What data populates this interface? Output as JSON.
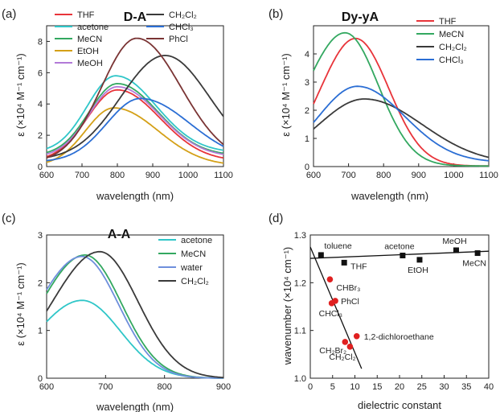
{
  "panels": {
    "a": {
      "label": "(a)",
      "title": "D-A"
    },
    "b": {
      "label": "(b)",
      "title": "Dy-yA"
    },
    "c": {
      "label": "(c)",
      "title": "A-A"
    },
    "d": {
      "label": "(d)"
    }
  },
  "colors": {
    "THF": "#e8343a",
    "acetone": "#2fc6c8",
    "MeCN": "#33a860",
    "EtOH": "#d4a017",
    "MeOH": "#b27ad8",
    "CH2Cl2": "#3a3a3a",
    "CHCl3": "#2b6ed4",
    "PhCl": "#7a3434",
    "water": "#6f8fdc",
    "marker_d": "#e02020",
    "marker_k": "#111111"
  },
  "chart_data": [
    {
      "id": "a",
      "type": "line",
      "title": "D-A",
      "xlabel": "wavelength (nm)",
      "ylabel": "ε (×10⁴ M⁻¹ cm⁻¹)",
      "xlim": [
        600,
        1100
      ],
      "ylim": [
        0,
        9
      ],
      "xticks": [
        600,
        700,
        800,
        900,
        1000,
        1100
      ],
      "yticks": [
        0,
        2,
        4,
        6,
        8
      ],
      "legend": [
        [
          "THF",
          "acetone",
          "MeCN",
          "EtOH",
          "MeOH"
        ],
        [
          "CH₂Cl₂",
          "CHCl₃",
          "PhCl"
        ]
      ],
      "series": [
        {
          "name": "THF",
          "peak_x": 800,
          "peak_y": 4.9,
          "w1": 85,
          "w2": 120,
          "base": 0.35
        },
        {
          "name": "acetone",
          "peak_x": 795,
          "peak_y": 5.8,
          "w1": 80,
          "w2": 115,
          "base": 0.9
        },
        {
          "name": "MeCN",
          "peak_x": 800,
          "peak_y": 5.3,
          "w1": 80,
          "w2": 115,
          "base": 0.7
        },
        {
          "name": "EtOH",
          "peak_x": 790,
          "peak_y": 3.75,
          "w1": 80,
          "w2": 125,
          "base": 0.05
        },
        {
          "name": "MeOH",
          "peak_x": 800,
          "peak_y": 5.1,
          "w1": 80,
          "w2": 118,
          "base": 0.6
        },
        {
          "name": "CH₂Cl₂",
          "color_key": "CH2Cl2",
          "peak_x": 935,
          "peak_y": 7.1,
          "w1": 125,
          "w2": 125,
          "base": 0.4
        },
        {
          "name": "CHCl₃",
          "color_key": "CHCl3",
          "peak_x": 865,
          "peak_y": 4.35,
          "w1": 95,
          "w2": 140,
          "base": 0.3
        },
        {
          "name": "PhCl",
          "peak_x": 855,
          "peak_y": 8.2,
          "w1": 100,
          "w2": 125,
          "base": 0.25
        }
      ]
    },
    {
      "id": "b",
      "type": "line",
      "title": "Dy-yA",
      "xlabel": "wavelength (nm)",
      "ylabel": "ε (×10⁴ M⁻¹ cm⁻¹)",
      "xlim": [
        600,
        1100
      ],
      "ylim": [
        0,
        5
      ],
      "xticks": [
        600,
        700,
        800,
        900,
        1000,
        1100
      ],
      "yticks": [
        0,
        1,
        2,
        3,
        4
      ],
      "legend": [
        "THF",
        "MeCN",
        "CH₂Cl₂",
        "CHCl₃"
      ],
      "series": [
        {
          "name": "THF",
          "peak_x": 720,
          "peak_y": 4.55,
          "w1": 100,
          "w2": 95,
          "base": 0.02
        },
        {
          "name": "MeCN",
          "peak_x": 690,
          "peak_y": 4.75,
          "w1": 110,
          "w2": 95,
          "base": 0.02
        },
        {
          "name": "CH₂Cl₂",
          "color_key": "CH2Cl2",
          "peak_x": 745,
          "peak_y": 2.4,
          "w1": 130,
          "w2": 165,
          "base": 0.1
        },
        {
          "name": "CHCl₃",
          "color_key": "CHCl3",
          "peak_x": 725,
          "peak_y": 2.85,
          "w1": 110,
          "w2": 135,
          "base": 0.15
        }
      ]
    },
    {
      "id": "c",
      "type": "line",
      "title": "A-A",
      "xlabel": "wavelength (nm)",
      "ylabel": "ε (×10⁴ M⁻¹ cm⁻¹)",
      "xlim": [
        600,
        900
      ],
      "ylim": [
        0,
        3
      ],
      "xticks": [
        600,
        700,
        800,
        900
      ],
      "yticks": [
        0,
        1,
        2,
        3
      ],
      "legend": [
        "acetone",
        "MeCN",
        "water",
        "CH₂Cl₂"
      ],
      "series": [
        {
          "name": "acetone",
          "peak_x": 660,
          "peak_y": 1.63,
          "w1": 75,
          "w2": 65,
          "base": 0.0
        },
        {
          "name": "MeCN",
          "peak_x": 665,
          "peak_y": 2.58,
          "w1": 75,
          "w2": 62,
          "base": 0.0
        },
        {
          "name": "water",
          "peak_x": 660,
          "peak_y": 2.55,
          "w1": 75,
          "w2": 62,
          "base": 0.0
        },
        {
          "name": "CH₂Cl₂",
          "color_key": "CH2Cl2",
          "peak_x": 690,
          "peak_y": 2.65,
          "w1": 80,
          "w2": 65,
          "base": 0.0
        }
      ]
    },
    {
      "id": "d",
      "type": "scatter",
      "xlabel": "dielectric constant",
      "ylabel": "wavenumber (×10⁴ cm⁻¹)",
      "xlim": [
        0,
        40
      ],
      "ylim": [
        1.0,
        1.3
      ],
      "xticks": [
        0,
        5,
        10,
        15,
        20,
        25,
        30,
        35,
        40
      ],
      "yticks": [
        1.0,
        1.1,
        1.2,
        1.3
      ],
      "series": [
        {
          "name": "black",
          "color_key": "marker_k",
          "marker": "square",
          "points": [
            {
              "label": "toluene",
              "x": 2.4,
              "y": 1.258
            },
            {
              "label": "THF",
              "x": 7.6,
              "y": 1.242
            },
            {
              "label": "acetone",
              "x": 20.7,
              "y": 1.257
            },
            {
              "label": "EtOH",
              "x": 24.5,
              "y": 1.248
            },
            {
              "label": "MeOH",
              "x": 32.7,
              "y": 1.268
            },
            {
              "label": "MeCN",
              "x": 37.5,
              "y": 1.262
            }
          ]
        },
        {
          "name": "red",
          "color_key": "marker_d",
          "marker": "circle",
          "points": [
            {
              "label": "CHBr₃",
              "x": 4.4,
              "y": 1.207
            },
            {
              "label": "PhCl",
              "x": 5.6,
              "y": 1.162
            },
            {
              "label": "CHCl₃",
              "x": 4.8,
              "y": 1.157
            },
            {
              "label": "1,2-dichloroethane",
              "x": 10.4,
              "y": 1.088
            },
            {
              "label": "CH₂Br₂",
              "x": 7.8,
              "y": 1.076
            },
            {
              "label": "CH₂Cl₂",
              "x": 8.9,
              "y": 1.066
            }
          ]
        }
      ],
      "fit_lines": [
        {
          "color_key": "marker_k",
          "x": [
            0,
            40
          ],
          "y": [
            1.251,
            1.266
          ]
        },
        {
          "color_key": "marker_k",
          "x": [
            0,
            11.5
          ],
          "y": [
            1.275,
            1.02
          ]
        }
      ]
    }
  ]
}
